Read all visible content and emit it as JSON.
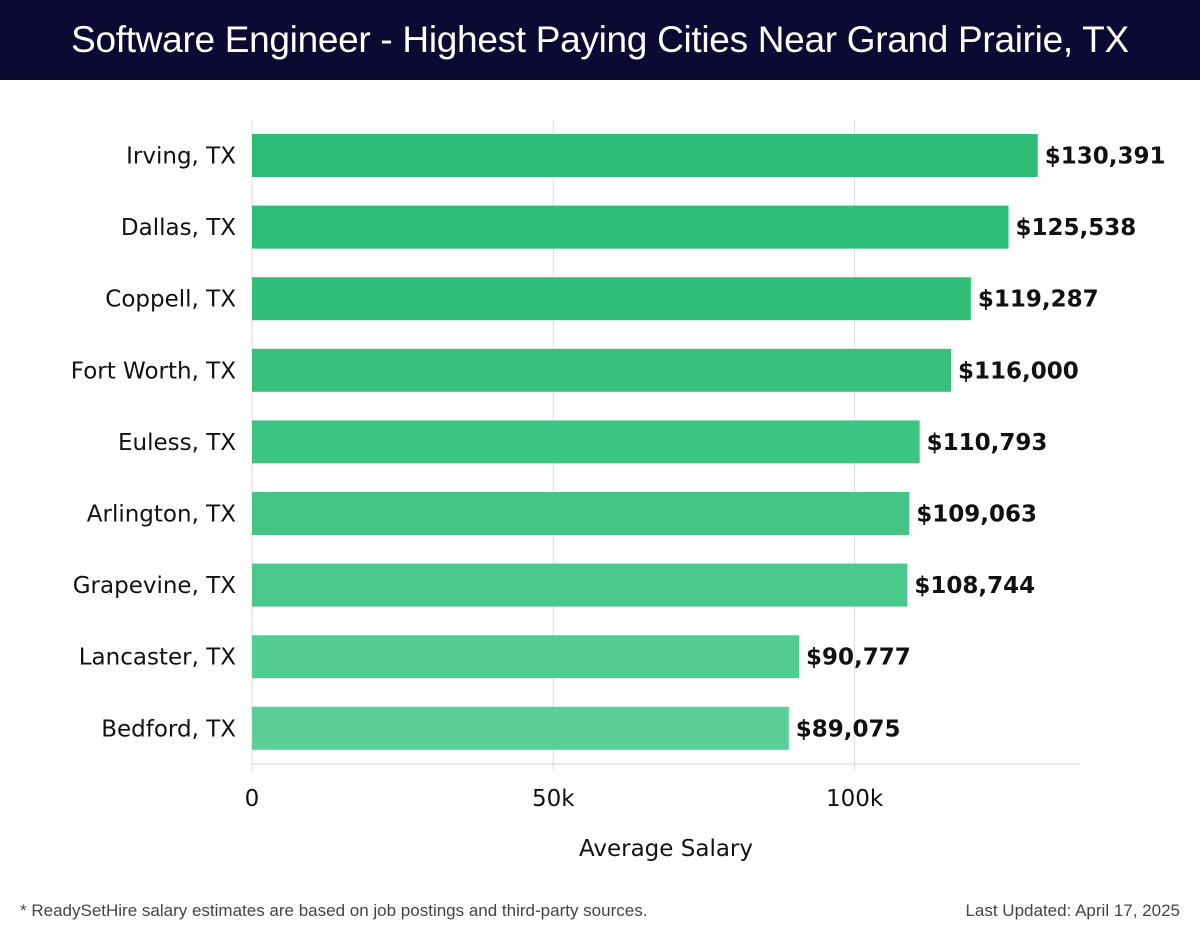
{
  "header": {
    "title": "Software Engineer - Highest Paying Cities Near Grand Prairie, TX"
  },
  "footer": {
    "note": "* ReadySetHire salary estimates are based on job postings and third-party sources.",
    "updated": "Last Updated: April 17, 2025"
  },
  "colors": {
    "header_bg": "#0c0a33",
    "bar_top": "#2dbd76",
    "bar_bottom": "#5ccf99",
    "grid": "#dddddd"
  },
  "chart_data": {
    "type": "bar",
    "orientation": "horizontal",
    "title": "Software Engineer - Highest Paying Cities Near Grand Prairie, TX",
    "xlabel": "Average Salary",
    "ylabel": "",
    "categories": [
      "Irving, TX",
      "Dallas, TX",
      "Coppell, TX",
      "Fort Worth, TX",
      "Euless, TX",
      "Arlington, TX",
      "Grapevine, TX",
      "Lancaster, TX",
      "Bedford, TX"
    ],
    "values": [
      130391,
      125538,
      119287,
      116000,
      110793,
      109063,
      108744,
      90777,
      89075
    ],
    "value_labels": [
      "$130,391",
      "$125,538",
      "$119,287",
      "$116,000",
      "$110,793",
      "$109,063",
      "$108,744",
      "$90,777",
      "$89,075"
    ],
    "xlim": [
      0,
      137400
    ],
    "xticks": [
      0,
      50000,
      100000
    ],
    "xtick_labels": [
      "0",
      "50k",
      "100k"
    ],
    "grid": true,
    "legend": "none"
  }
}
